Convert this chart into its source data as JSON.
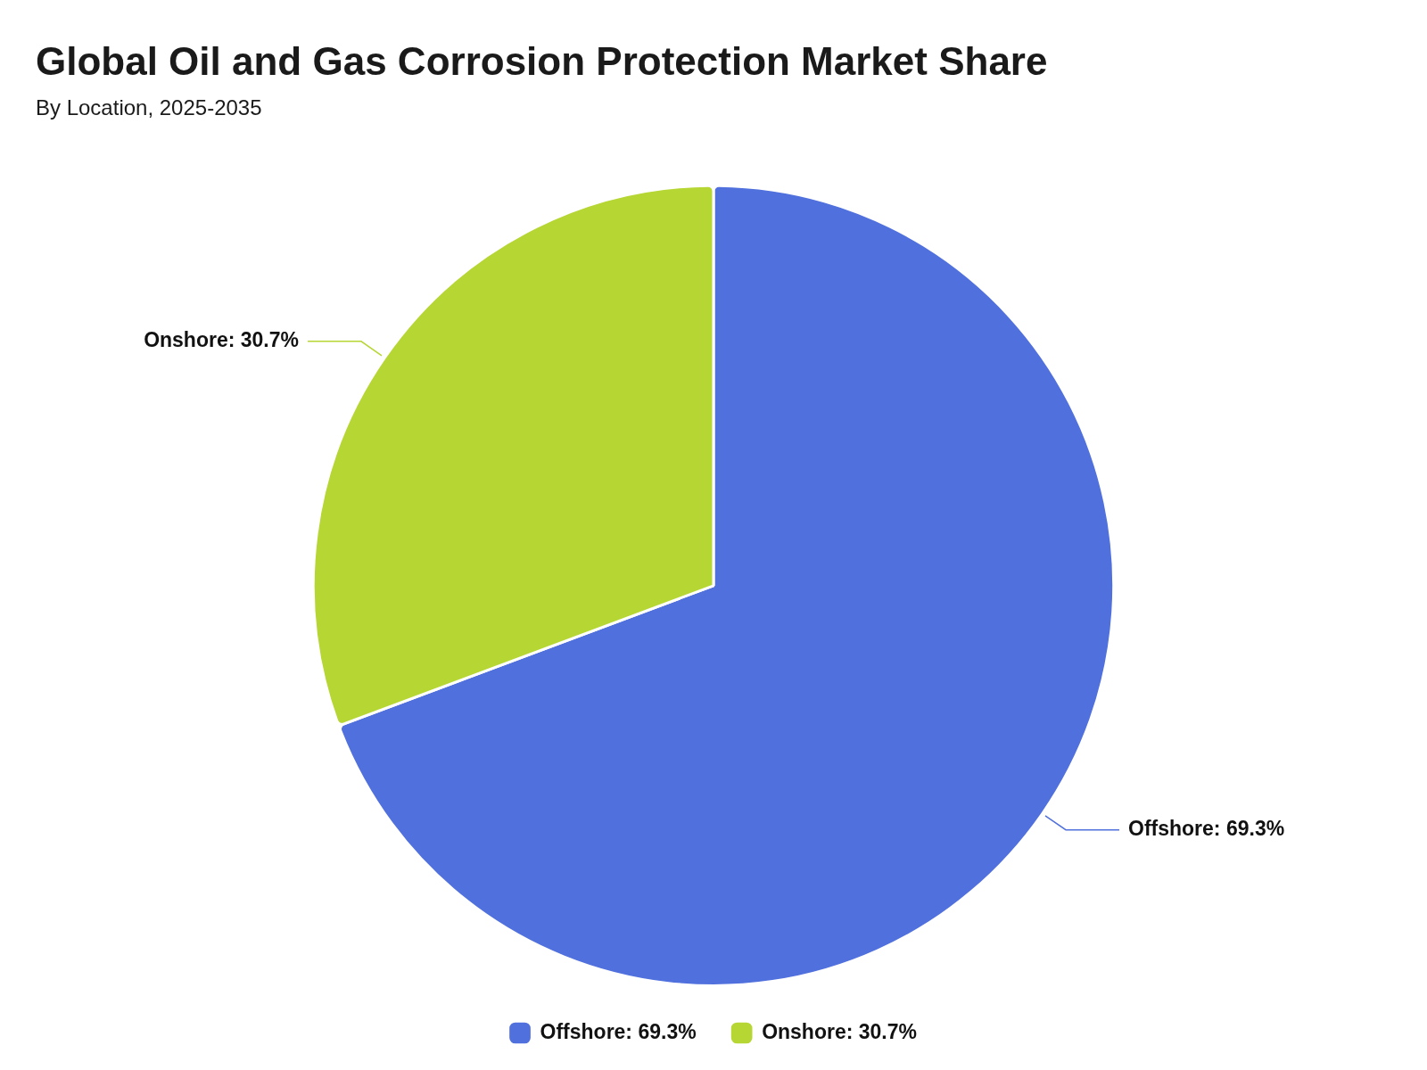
{
  "chart_data": {
    "type": "pie",
    "title": "Global Oil and Gas Corrosion Protection Market Share",
    "subtitle": "By Location, 2025-2035",
    "categories": [
      "Offshore: 69.3%",
      "Onshore: 30.7%"
    ],
    "values": [
      69.3,
      30.7
    ],
    "value_labels": [
      "Offshore: 69.3%",
      "Onshore: 30.7%"
    ],
    "colors": [
      "#5070dd",
      "#b6d634"
    ],
    "legend": "bottom"
  }
}
